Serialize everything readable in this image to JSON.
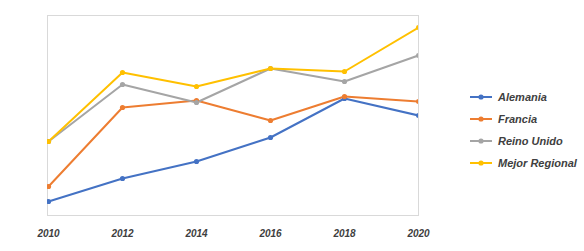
{
  "chart_data": {
    "type": "line",
    "categories": [
      "2010",
      "2012",
      "2014",
      "2016",
      "2018",
      "2020"
    ],
    "ylim": [
      0,
      100
    ],
    "tick_labels": "x",
    "grid": false,
    "legend": "right",
    "marker": "circle",
    "line_style": "solid",
    "series": [
      {
        "name": "Alemania",
        "color": "#4472c4",
        "values": [
          7,
          18.5,
          27,
          39,
          58.5,
          50
        ]
      },
      {
        "name": "Francia",
        "color": "#ed7d31",
        "values": [
          14.5,
          54,
          57.5,
          47.5,
          59.5,
          57
        ]
      },
      {
        "name": "Reino Unido",
        "color": "#a5a5a5",
        "values": [
          37,
          65.5,
          56.5,
          73.5,
          67,
          80
        ]
      },
      {
        "name": "Mejor Regional",
        "color": "#ffc000",
        "values": [
          37,
          71.5,
          64.5,
          73.5,
          72,
          94
        ]
      }
    ]
  }
}
